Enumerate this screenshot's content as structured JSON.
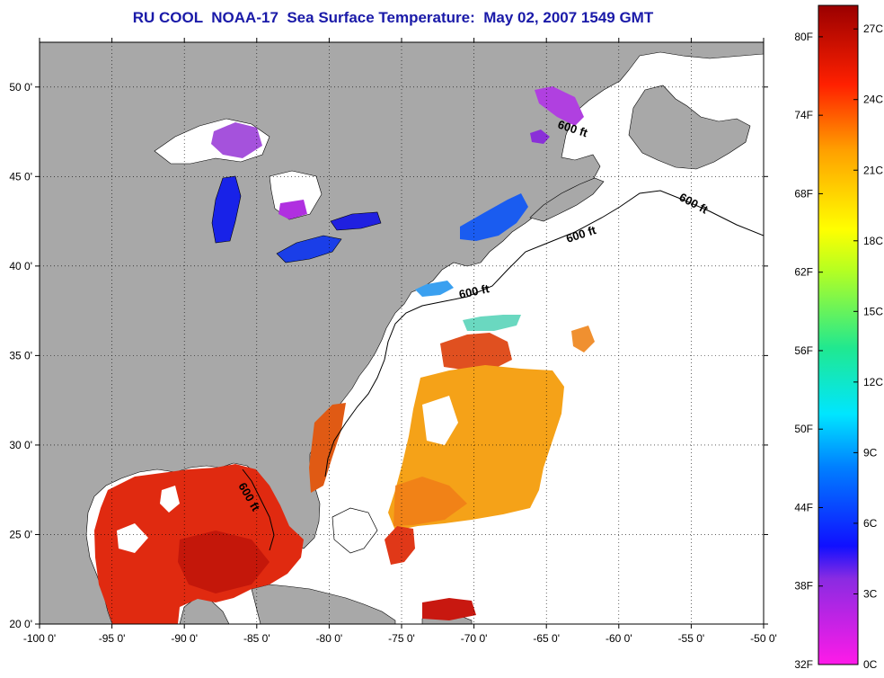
{
  "title": "RU COOL  NOAA-17  Sea Surface Temperature:  May 02, 2007 1549 GMT",
  "map": {
    "type": "sea-surface-temperature-map",
    "lon_range": [
      -100,
      -50
    ],
    "lat_range": [
      20,
      52.5
    ],
    "x_ticks": [
      "-100 0'",
      "-95 0'",
      "-90 0'",
      "-85 0'",
      "-80 0'",
      "-75 0'",
      "-70 0'",
      "-65 0'",
      "-60 0'",
      "-55 0'",
      "-50 0'"
    ],
    "y_ticks": [
      "20 0'",
      "25 0'",
      "30 0'",
      "35 0'",
      "40 0'",
      "45 0'",
      "50 0'"
    ],
    "grid": "dotted",
    "contour_label": "600 ft",
    "colors": {
      "land": "#a8a8a8",
      "no_data": "#ffffff",
      "title": "#1a1aa8"
    }
  },
  "colorbar": {
    "fahrenheit_labels": [
      "80F",
      "74F",
      "68F",
      "62F",
      "56F",
      "50F",
      "44F",
      "38F",
      "32F"
    ],
    "celsius_labels": [
      "27C",
      "24C",
      "21C",
      "18C",
      "15C",
      "12C",
      "9C",
      "6C",
      "3C",
      "0C"
    ],
    "celsius_range": [
      0,
      28
    ]
  }
}
